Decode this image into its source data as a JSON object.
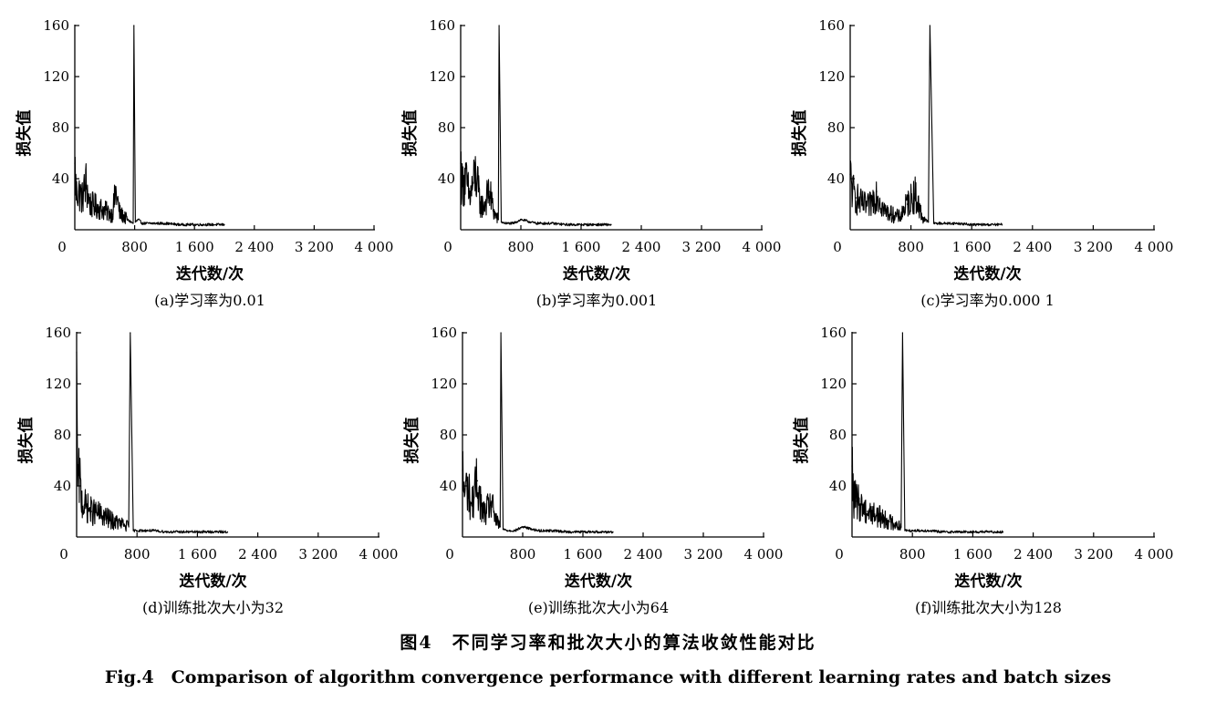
{
  "figure": {
    "title_cn": "图4　不同学习率和批次大小的算法收敛性能对比",
    "title_en": "Fig.4　Comparison of algorithm convergence performance with different learning rates and batch sizes"
  },
  "chart_data": [
    {
      "type": "line",
      "caption": "(a)学习率为0.01",
      "xlabel": "迭代数/次",
      "ylabel": "损失值",
      "xlim": [
        0,
        4000
      ],
      "ylim": [
        0,
        160
      ],
      "xticks": [
        0,
        800,
        1600,
        2400,
        3200,
        4000
      ],
      "xtick_labels": [
        "0",
        "800",
        "1 600",
        "2 400",
        "3 200",
        "4 000"
      ],
      "yticks": [
        40,
        80,
        120,
        160
      ],
      "ytick_labels": [
        "40",
        "80",
        "120",
        "160"
      ],
      "grid": false,
      "x": [
        0,
        20,
        50,
        100,
        150,
        200,
        300,
        400,
        500,
        550,
        600,
        700,
        780,
        790,
        810,
        850,
        900,
        1000,
        1200,
        1400,
        1600,
        1800,
        2000
      ],
      "y": [
        52,
        28,
        30,
        25,
        36,
        20,
        18,
        15,
        12,
        30,
        13,
        8,
        5,
        160,
        6,
        8,
        5,
        5,
        5,
        4,
        4,
        4,
        4
      ]
    },
    {
      "type": "line",
      "caption": "(b)学习率为0.001",
      "xlabel": "迭代数/次",
      "ylabel": "损失值",
      "xlim": [
        0,
        4000
      ],
      "ylim": [
        0,
        160
      ],
      "xticks": [
        0,
        800,
        1600,
        2400,
        3200,
        4000
      ],
      "xtick_labels": [
        "0",
        "800",
        "1 600",
        "2 400",
        "3 200",
        "4 000"
      ],
      "yticks": [
        40,
        80,
        120,
        160
      ],
      "ytick_labels": [
        "40",
        "80",
        "120",
        "160"
      ],
      "grid": false,
      "x": [
        0,
        20,
        60,
        120,
        200,
        260,
        300,
        380,
        450,
        500,
        510,
        540,
        600,
        700,
        800,
        1000,
        1200,
        1400,
        1600,
        1800,
        2000
      ],
      "y": [
        52,
        35,
        40,
        25,
        44,
        20,
        18,
        30,
        12,
        8,
        160,
        6,
        5,
        5,
        8,
        5,
        5,
        4,
        4,
        4,
        4
      ]
    },
    {
      "type": "line",
      "caption": "(c)学习率为0.000 1",
      "xlabel": "迭代数/次",
      "ylabel": "损失值",
      "xlim": [
        0,
        4000
      ],
      "ylim": [
        0,
        160
      ],
      "xticks": [
        0,
        800,
        1600,
        2400,
        3200,
        4000
      ],
      "xtick_labels": [
        "0",
        "800",
        "1 600",
        "2 400",
        "3 200",
        "4 000"
      ],
      "yticks": [
        40,
        80,
        120,
        160
      ],
      "ytick_labels": [
        "40",
        "80",
        "120",
        "160"
      ],
      "grid": false,
      "x": [
        0,
        30,
        80,
        150,
        250,
        350,
        450,
        550,
        650,
        750,
        850,
        950,
        1030,
        1050,
        1100,
        1200,
        1400,
        1600,
        1800,
        2000
      ],
      "y": [
        43,
        30,
        25,
        20,
        18,
        30,
        15,
        12,
        10,
        20,
        28,
        10,
        6,
        160,
        5,
        5,
        5,
        4,
        4,
        4
      ]
    },
    {
      "type": "line",
      "caption": "(d)训练批次大小为32",
      "xlabel": "迭代数/次",
      "ylabel": "损失值",
      "xlim": [
        0,
        4000
      ],
      "ylim": [
        0,
        160
      ],
      "xticks": [
        0,
        800,
        1600,
        2400,
        3200,
        4000
      ],
      "xtick_labels": [
        "0",
        "800",
        "1 600",
        "2 400",
        "3 200",
        "4 000"
      ],
      "yticks": [
        40,
        80,
        120,
        160
      ],
      "ytick_labels": [
        "40",
        "80",
        "120",
        "160"
      ],
      "grid": false,
      "x": [
        0,
        15,
        40,
        60,
        100,
        200,
        300,
        400,
        500,
        600,
        690,
        710,
        750,
        800,
        1000,
        1200,
        1400,
        1600,
        1800,
        2000
      ],
      "y": [
        145,
        40,
        48,
        30,
        25,
        20,
        18,
        15,
        12,
        10,
        8,
        160,
        5,
        5,
        5,
        4,
        4,
        4,
        4,
        4
      ]
    },
    {
      "type": "line",
      "caption": "(e)训练批次大小为64",
      "xlabel": "迭代数/次",
      "ylabel": "损失值",
      "xlim": [
        0,
        4000
      ],
      "ylim": [
        0,
        160
      ],
      "xticks": [
        0,
        800,
        1600,
        2400,
        3200,
        4000
      ],
      "xtick_labels": [
        "0",
        "800",
        "1 600",
        "2 400",
        "3 200",
        "4 000"
      ],
      "yticks": [
        40,
        80,
        120,
        160
      ],
      "ytick_labels": [
        "40",
        "80",
        "120",
        "160"
      ],
      "grid": false,
      "x": [
        0,
        20,
        60,
        120,
        200,
        260,
        300,
        380,
        450,
        500,
        510,
        540,
        600,
        700,
        800,
        1000,
        1200,
        1400,
        1600,
        1800,
        2000
      ],
      "y": [
        52,
        35,
        40,
        25,
        44,
        20,
        18,
        27,
        12,
        8,
        160,
        6,
        5,
        5,
        8,
        5,
        5,
        4,
        4,
        4,
        4
      ]
    },
    {
      "type": "line",
      "caption": "(f)训练批次大小为128",
      "xlabel": "迭代数/次",
      "ylabel": "损失值",
      "xlim": [
        0,
        4000
      ],
      "ylim": [
        0,
        160
      ],
      "xticks": [
        0,
        800,
        1600,
        2400,
        3200,
        4000
      ],
      "xtick_labels": [
        "0",
        "800",
        "1 600",
        "2 400",
        "3 200",
        "4 000"
      ],
      "yticks": [
        40,
        80,
        120,
        160
      ],
      "ytick_labels": [
        "40",
        "80",
        "120",
        "160"
      ],
      "grid": false,
      "x": [
        0,
        20,
        60,
        120,
        200,
        300,
        400,
        500,
        600,
        650,
        670,
        700,
        800,
        1000,
        1200,
        1400,
        1600,
        1800,
        2000
      ],
      "y": [
        55,
        30,
        28,
        25,
        20,
        18,
        15,
        12,
        10,
        8,
        160,
        5,
        5,
        5,
        4,
        4,
        4,
        4,
        4
      ]
    }
  ]
}
